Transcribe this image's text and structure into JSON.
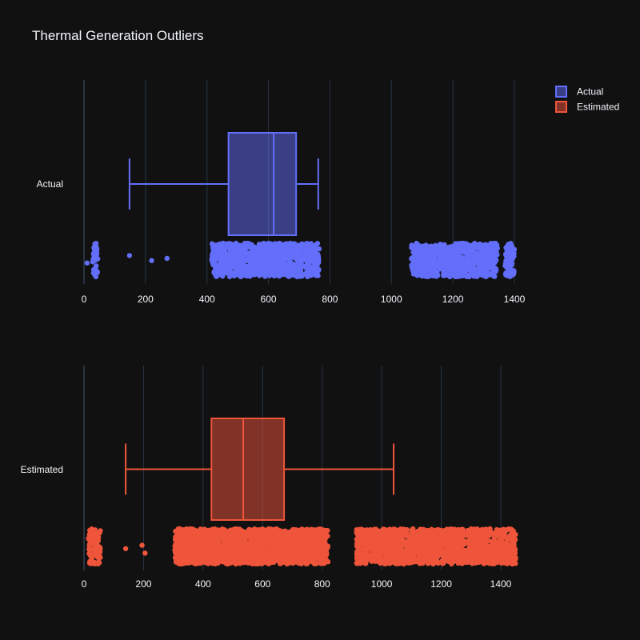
{
  "colors": {
    "background": "#111111",
    "grid": "#283442",
    "text": "#f2f5fa"
  },
  "legend": {
    "position": "top-right",
    "items": [
      {
        "label": "Actual",
        "color": "#636efa"
      },
      {
        "label": "Estimated",
        "color": "#EF553B"
      }
    ]
  },
  "chart_data": {
    "type": "box",
    "title": "Thermal Generation Outliers",
    "orientation": "horizontal",
    "grid": true,
    "subplots": [
      {
        "name": "Actual",
        "category_label": "Actual",
        "color": "#636efa",
        "xlim": [
          -5,
          1450
        ],
        "ticks": [
          0,
          200,
          400,
          600,
          800,
          1000,
          1200,
          1400
        ],
        "box": {
          "lower_fence": 148,
          "q1": 470,
          "median": 617,
          "q3": 690,
          "upper_fence": 762
        },
        "point_clusters": [
          {
            "from": 28,
            "to": 45,
            "count": 40
          },
          {
            "from": 415,
            "to": 765,
            "count": 900
          },
          {
            "from": 1065,
            "to": 1345,
            "count": 650
          },
          {
            "from": 1370,
            "to": 1400,
            "count": 80
          }
        ],
        "sparse_points": [
          10,
          148,
          220,
          270
        ]
      },
      {
        "name": "Estimated",
        "category_label": "Estimated",
        "color": "#EF553B",
        "xlim": [
          -5,
          1450
        ],
        "ticks": [
          0,
          200,
          400,
          600,
          800,
          1000,
          1200,
          1400
        ],
        "box": {
          "lower_fence": 140,
          "q1": 428,
          "median": 535,
          "q3": 672,
          "upper_fence": 1040
        },
        "point_clusters": [
          {
            "from": 15,
            "to": 55,
            "count": 90
          },
          {
            "from": 305,
            "to": 820,
            "count": 1800
          },
          {
            "from": 915,
            "to": 1450,
            "count": 1400
          }
        ],
        "sparse_points": [
          140,
          195,
          205
        ]
      }
    ]
  }
}
